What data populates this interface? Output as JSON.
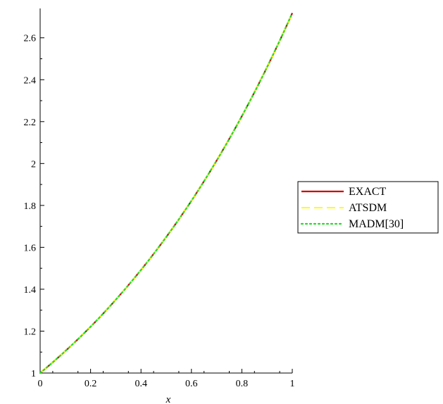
{
  "chart_data": {
    "type": "line",
    "title": "",
    "xlabel": "x",
    "ylabel": "",
    "xlim": [
      0,
      1
    ],
    "ylim": [
      1,
      2.72
    ],
    "x_ticks": [
      0,
      0.2,
      0.4,
      0.6,
      0.8,
      1
    ],
    "x_tick_labels": [
      "0",
      "0.2",
      "0.4",
      "0.6",
      "0.8",
      "1"
    ],
    "y_ticks": [
      1,
      1.2,
      1.4,
      1.6,
      1.8,
      2,
      2.2,
      2.4,
      2.6
    ],
    "y_tick_labels": [
      "1",
      "1.2",
      "1.4",
      "1.6",
      "1.8",
      "2",
      "2.2",
      "2.4",
      "2.6"
    ],
    "grid": false,
    "legend_position": "right",
    "x": [
      0,
      0.1,
      0.2,
      0.3,
      0.4,
      0.5,
      0.6,
      0.7,
      0.8,
      0.9,
      1.0
    ],
    "series": [
      {
        "name": "EXACT",
        "color": "#cc0000",
        "style": "solid",
        "values": [
          1.0,
          1.105,
          1.221,
          1.35,
          1.492,
          1.649,
          1.822,
          2.014,
          2.226,
          2.46,
          2.718
        ]
      },
      {
        "name": "ATSDM",
        "color": "#ffff00",
        "style": "dashed",
        "values": [
          1.0,
          1.105,
          1.221,
          1.35,
          1.492,
          1.649,
          1.822,
          2.014,
          2.226,
          2.46,
          2.718
        ]
      },
      {
        "name": "MADM[30]",
        "color": "#22dd22",
        "style": "dotted",
        "values": [
          1.0,
          1.105,
          1.221,
          1.35,
          1.492,
          1.649,
          1.822,
          2.014,
          2.226,
          2.46,
          2.718
        ]
      }
    ]
  }
}
